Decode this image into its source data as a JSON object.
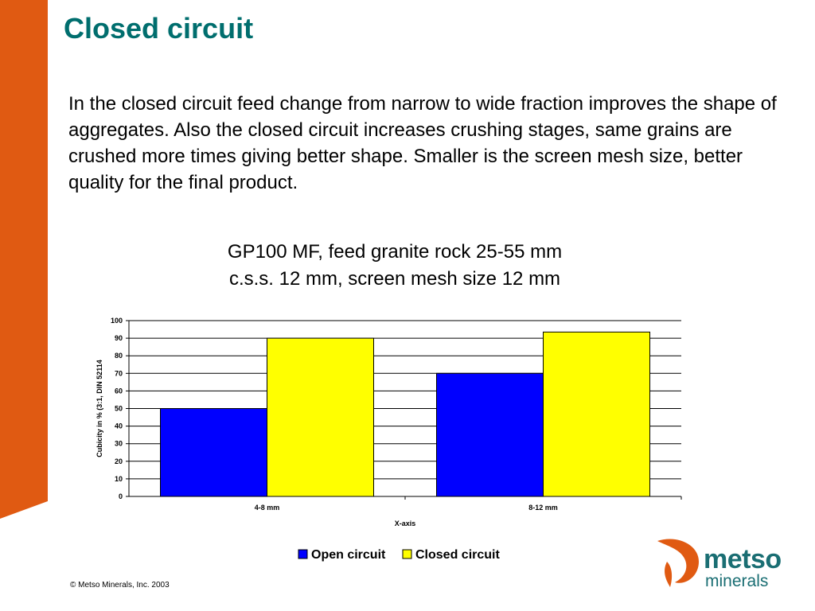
{
  "slide": {
    "title": "Closed circuit",
    "body": "In the closed circuit feed change from narrow to wide fraction improves the shape of aggregates. Also the closed circuit increases crushing stages, same grains are crushed more times giving better shape. Smaller is the screen mesh size, better quality for the final product.",
    "caption_line_1": "GP100 MF, feed granite rock 25-55 mm",
    "caption_line_2": "c.s.s. 12 mm, screen mesh size 12 mm",
    "copyright": "© Metso Minerals, Inc. 2003"
  },
  "logo": {
    "word_1": "metso",
    "word_2": "minerals"
  },
  "colors": {
    "accent_orange": "#e05a12",
    "title_teal": "#006e6e",
    "logo_teal": "#1a6e73",
    "open_circuit": "#0000ff",
    "closed_circuit": "#ffff00"
  },
  "chart_data": {
    "type": "bar",
    "categories": [
      "4-8 mm",
      "8-12 mm"
    ],
    "series": [
      {
        "name": "Open circuit",
        "values": [
          50,
          70
        ]
      },
      {
        "name": "Closed circuit",
        "values": [
          90,
          93.5
        ]
      }
    ],
    "title": "",
    "xlabel": "X-axis",
    "ylabel": "Cubicity in % (3:1, DIN 52114",
    "ylim": [
      0,
      100
    ],
    "yticks": [
      0,
      10,
      20,
      30,
      40,
      50,
      60,
      70,
      80,
      90,
      100
    ],
    "grid": true,
    "legend": "bottom-center"
  }
}
